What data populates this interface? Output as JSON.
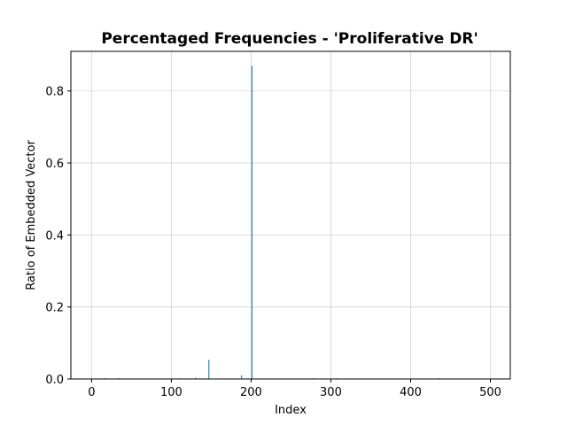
{
  "chart_data": {
    "type": "bar",
    "title": "Percentaged Frequencies - 'Proliferative DR'",
    "xlabel": "Index",
    "ylabel": "Ratio of Embedded Vector",
    "xlim": [
      -26,
      525
    ],
    "ylim": [
      0,
      0.91
    ],
    "xticks": [
      "0",
      "100",
      "200",
      "300",
      "400",
      "500"
    ],
    "yticks": [
      "0.0",
      "0.2",
      "0.4",
      "0.6",
      "0.8"
    ],
    "grid": true,
    "bar_color": "#1f77b4",
    "points": [
      {
        "x": 17,
        "y": 0.002
      },
      {
        "x": 34,
        "y": 0.002
      },
      {
        "x": 112,
        "y": 0.002
      },
      {
        "x": 130,
        "y": 0.003
      },
      {
        "x": 147,
        "y": 0.053
      },
      {
        "x": 188,
        "y": 0.01
      },
      {
        "x": 201,
        "y": 0.87
      },
      {
        "x": 278,
        "y": 0.002
      },
      {
        "x": 307,
        "y": 0.002
      },
      {
        "x": 436,
        "y": 0.002
      }
    ]
  }
}
